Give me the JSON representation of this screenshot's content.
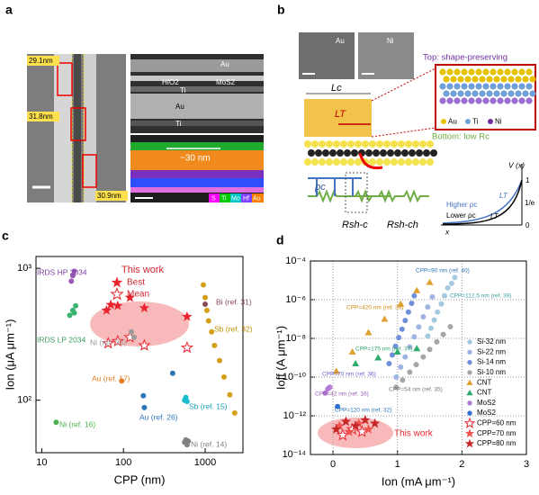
{
  "panel_a": {
    "label": "a",
    "widths": [
      "29.1nm",
      "31.8nm",
      "30.9nm"
    ],
    "tem_labels": [
      "Au",
      "HfO2",
      "MoS2",
      "Ti",
      "Au",
      "Ti"
    ],
    "gap": "~30 nm",
    "elements": [
      "S",
      "Ti",
      "Mo",
      "Hf",
      "Au"
    ]
  },
  "panel_b": {
    "label": "b",
    "sem": [
      "Au",
      "Ni"
    ],
    "top": "Top: shape-preserving",
    "bottom": "Bottom: low Rc",
    "lc": "Lc",
    "lt": "LT",
    "atoms": [
      "Au",
      "Ti",
      "Ni"
    ],
    "circuit": [
      "ρc",
      "Rsh-c",
      "Rsh-ch"
    ],
    "curve": {
      "v": "V (x)",
      "ticks": [
        "1",
        "1/e",
        "0"
      ],
      "x": "x",
      "higher": "Higher ρc",
      "lower": "Lower ρc",
      "lt": [
        "LT",
        "LT"
      ]
    }
  },
  "chart_data": [
    {
      "type": "scatter",
      "label": "c",
      "x_label": "CPP (nm)",
      "y_label": "Ion (μA μm⁻¹)",
      "xlog": true,
      "ylog": true,
      "xlim": [
        8.5,
        2900
      ],
      "ylim": [
        40,
        1230
      ],
      "xticks": [
        10,
        100,
        1000
      ],
      "yticks": [
        {
          "value": 100,
          "label": "10²"
        },
        {
          "value": 1000,
          "label": "10³"
        }
      ],
      "grid": false,
      "legend": "upper center",
      "legend_title": "This work",
      "series": [
        {
          "name": "Best",
          "color": "#e8252d",
          "marker": "star",
          "x": [
            62,
            70,
            85,
            120,
            180,
            600
          ],
          "values": [
            480,
            530,
            520,
            600,
            500,
            430
          ]
        },
        {
          "name": "Mean",
          "color": "#e8252d",
          "marker": "star-open",
          "x": [
            65,
            85,
            120,
            180,
            600
          ],
          "values": [
            270,
            280,
            300,
            260,
            250
          ]
        },
        {
          "name": "IRDS HP 2034",
          "color": "#9b59b6",
          "marker": "circle",
          "x": [
            23,
            24,
            25
          ],
          "values": [
            800,
            880,
            950
          ]
        },
        {
          "name": "IRDS LP 2034",
          "color": "#3cb371",
          "marker": "circle",
          "x": [
            22,
            24,
            26,
            25
          ],
          "values": [
            440,
            480,
            520,
            460
          ]
        },
        {
          "name": "Bi (ref. 31)",
          "color": "#8b4a5a",
          "marker": "circle",
          "x": [
            1000
          ],
          "values": [
            535
          ]
        },
        {
          "name": "Sb (ref. 32)",
          "color": "#d4a017",
          "marker": "circle",
          "x": [
            950,
            1000,
            1050,
            1100,
            1200,
            1300,
            1500,
            1700,
            2000,
            2300
          ],
          "values": [
            750,
            600,
            480,
            400,
            330,
            260,
            200,
            150,
            110,
            80
          ]
        },
        {
          "name": "Ni (ref. 33)",
          "color": "#9a9a9a",
          "marker": "circle",
          "x": [
            125,
            135
          ],
          "values": [
            330,
            300
          ]
        },
        {
          "name": "Au (ref. 17)",
          "color": "#e67e22",
          "marker": "circle",
          "x": [
            95
          ],
          "values": [
            140
          ]
        },
        {
          "name": "Au (ref. 26)",
          "color": "#2e75b6",
          "marker": "circle",
          "x": [
            175,
            180,
            400
          ],
          "values": [
            108,
            88,
            160
          ]
        },
        {
          "name": "Sb (ref. 15)",
          "color": "#17becf",
          "marker": "circle",
          "x": [
            560,
            580,
            600
          ],
          "values": [
            100,
            105,
            98
          ]
        },
        {
          "name": "Ni (ref. 16)",
          "color": "#4caf50",
          "marker": "circle",
          "x": [
            15
          ],
          "values": [
            68
          ]
        },
        {
          "name": "Ni (ref. 14)",
          "color": "#808080",
          "marker": "circle",
          "x": [
            560,
            580,
            600,
            620
          ],
          "values": [
            48,
            50,
            46,
            49
          ]
        }
      ]
    },
    {
      "type": "scatter",
      "label": "d",
      "x_label": "Ion (mA μm⁻¹)",
      "y_label": "Ioff (A μm⁻¹)",
      "xlog": false,
      "ylog": true,
      "xlim": [
        -0.35,
        3
      ],
      "ylim": [
        1e-14,
        0.0001
      ],
      "xticks": [
        0,
        1,
        2,
        3
      ],
      "yticks": [
        {
          "value": 0.0001,
          "label": "10⁻⁴"
        },
        {
          "value": 1e-06,
          "label": "10⁻⁶"
        },
        {
          "value": 1e-08,
          "label": "10⁻⁸"
        },
        {
          "value": 1e-10,
          "label": "10⁻¹⁰"
        },
        {
          "value": 1e-12,
          "label": "10⁻¹²"
        },
        {
          "value": 1e-14,
          "label": "10⁻¹⁴"
        }
      ],
      "grid": true,
      "legend": "lower right",
      "annotations": [
        "CPP=90 nm (ref. 40)",
        "CPP=112.5 nm (ref. 39)",
        "CPP=420 nm (ref. 38)",
        "CPP=175 nm (ref. 37)",
        "CPP=70 nm (ref. 36)",
        "CPP=54 nm (ref. 35)",
        "CPP=42 nm (ref. 16)",
        "CPP=120 nm (ref. 32)",
        "This work"
      ],
      "series": [
        {
          "name": "Si-32 nm",
          "color": "#a3c9e0",
          "marker": "circle",
          "x": [
            1.47,
            1.52,
            1.57,
            1.62,
            1.68,
            1.73,
            1.78,
            1.84,
            1.89
          ],
          "values": [
            1.3e-08,
            3.4e-08,
            8.9e-08,
            2.3e-07,
            6e-07,
            1.6e-06,
            4.1e-06,
            7e-06,
            1.4e-05
          ]
        },
        {
          "name": "Si-22 nm",
          "color": "#9fb4e3",
          "marker": "circle",
          "x": [
            0.98,
            1.05,
            1.12,
            1.19,
            1.26,
            1.33,
            1.4,
            1.47,
            1.54
          ],
          "values": [
            1e-10,
            3.3e-10,
            1.1e-09,
            3.6e-09,
            1.2e-08,
            3.9e-08,
            1.3e-07,
            4.2e-07,
            1.4e-06
          ]
        },
        {
          "name": "Si-14 nm",
          "color": "#6f8fd8",
          "marker": "circle",
          "x": [
            0.87,
            0.92,
            0.97,
            1.02,
            1.07,
            1.12,
            1.17,
            1.22,
            1.26
          ],
          "values": [
            5e-10,
            1.4e-09,
            3.9e-09,
            1.1e-08,
            3e-08,
            8.4e-08,
            2.3e-07,
            6.5e-07,
            1.6e-06
          ]
        },
        {
          "name": "Si-10 nm",
          "color": "#a6a6a6",
          "marker": "circle",
          "x": [
            0.98,
            1.08,
            1.19,
            1.29,
            1.4,
            1.5,
            1.61,
            1.71,
            1.82
          ],
          "values": [
            3e-11,
            7e-11,
            1.8e-10,
            4.4e-10,
            1.1e-09,
            2.7e-09,
            6.6e-09,
            1.6e-08,
            4e-08
          ]
        },
        {
          "name": "CNT",
          "color": "#e0a030",
          "marker": "triangle",
          "x": [
            0.05,
            0.3,
            0.55,
            0.8,
            1.05,
            1.3,
            1.5
          ],
          "values": [
            2e-10,
            2e-09,
            2e-08,
            1e-07,
            6e-07,
            3e-06,
            8e-06
          ]
        },
        {
          "name": "CNT",
          "color": "#2eaa6e",
          "marker": "triangle",
          "x": [
            0.35,
            0.7,
            1.0,
            1.3
          ],
          "values": [
            5e-10,
            1e-09,
            2e-09,
            3e-09
          ]
        },
        {
          "name": "MoS2",
          "color": "#b07cd8",
          "marker": "circle",
          "x": [
            -0.12,
            -0.08,
            -0.05
          ],
          "values": [
            1.5e-11,
            2.5e-11,
            3e-11
          ]
        },
        {
          "name": "MoS2",
          "color": "#2e6fd0",
          "marker": "circle",
          "x": [
            0.07
          ],
          "values": [
            3e-12
          ]
        },
        {
          "name": "CPP=60 nm",
          "color": "#e8252d",
          "marker": "star-open",
          "x": [
            0.15,
            0.3,
            0.45
          ],
          "values": [
            1e-13,
            2e-13,
            1.5e-13
          ]
        },
        {
          "name": "CPP=70 nm",
          "color": "#ef5350",
          "marker": "star",
          "x": [
            0.1,
            0.25,
            0.4,
            0.55
          ],
          "values": [
            3e-13,
            1.5e-13,
            4e-13,
            2e-13
          ]
        },
        {
          "name": "CPP=80 nm",
          "color": "#c62828",
          "marker": "star",
          "x": [
            0.05,
            0.2,
            0.35,
            0.5,
            0.65
          ],
          "values": [
            2e-13,
            5e-13,
            3e-13,
            6e-13,
            4e-13
          ]
        }
      ]
    }
  ]
}
